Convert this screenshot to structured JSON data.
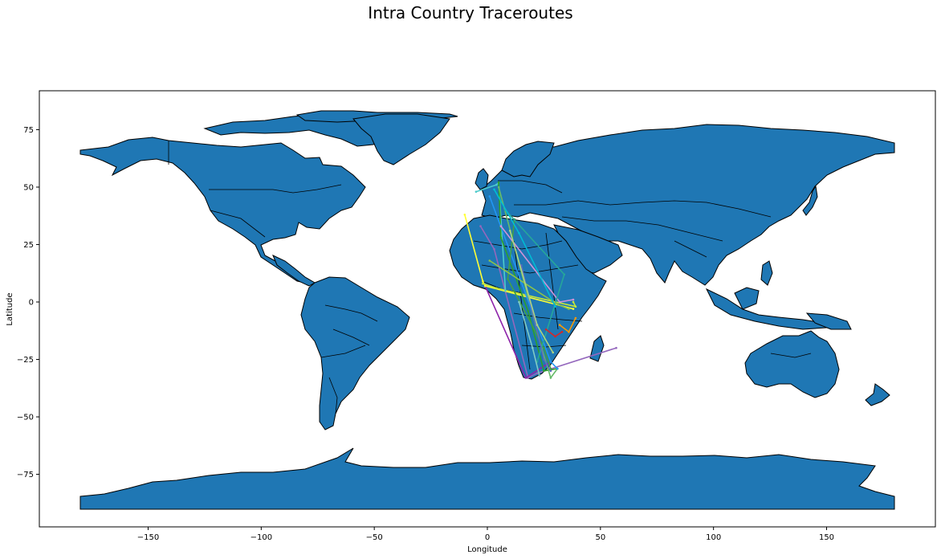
{
  "chart_data": {
    "type": "map",
    "title": "Intra Country Traceroutes",
    "xlabel": "Longitude",
    "ylabel": "Latitude",
    "xlim": [
      -198,
      198
    ],
    "ylim": [
      -99,
      92
    ],
    "xticks": [
      -150,
      -100,
      -50,
      0,
      50,
      100,
      150
    ],
    "yticks": [
      75,
      50,
      25,
      0,
      -25,
      -50,
      -75
    ],
    "xtick_labels": [
      "−150",
      "−100",
      "−50",
      "0",
      "50",
      "100",
      "150"
    ],
    "ytick_labels": [
      "75",
      "50",
      "25",
      "0",
      "−25",
      "−50",
      "−75"
    ],
    "land_color": "#1f77b4",
    "border_color": "#000000",
    "grid": false,
    "routes": [
      {
        "color": "#9467bd",
        "points": [
          [
            -3,
            33
          ],
          [
            3,
            23
          ],
          [
            18,
            -33
          ],
          [
            22,
            -31
          ],
          [
            57,
            -20
          ]
        ]
      },
      {
        "color": "#8e24aa",
        "points": [
          [
            -1,
            7
          ],
          [
            17,
            -33
          ],
          [
            28,
            -26
          ]
        ]
      },
      {
        "color": "#ffff33",
        "points": [
          [
            -10,
            38
          ],
          [
            -2,
            9
          ],
          [
            -1,
            7
          ],
          [
            38,
            -3
          ]
        ]
      },
      {
        "color": "#c6e83a",
        "points": [
          [
            -2,
            8
          ],
          [
            4,
            6
          ],
          [
            39,
            -2
          ],
          [
            38,
            0
          ]
        ]
      },
      {
        "color": "#4ecbcb",
        "points": [
          [
            -5,
            48
          ],
          [
            4,
            51
          ],
          [
            5,
            52
          ],
          [
            8,
            5
          ]
        ]
      },
      {
        "color": "#2ca02c",
        "points": [
          [
            5,
            52
          ],
          [
            6,
            28
          ],
          [
            18,
            -4
          ],
          [
            25,
            -30
          ],
          [
            31,
            -29
          ]
        ]
      },
      {
        "color": "#66bb6a",
        "points": [
          [
            5,
            50
          ],
          [
            24,
            -20
          ],
          [
            28,
            -33
          ],
          [
            31,
            -29
          ]
        ]
      },
      {
        "color": "#2196f3",
        "points": [
          [
            1,
            46
          ],
          [
            28,
            -26
          ],
          [
            31,
            -29
          ]
        ]
      },
      {
        "color": "#43a047",
        "points": [
          [
            12,
            36
          ],
          [
            9,
            10
          ],
          [
            25,
            -20
          ],
          [
            28,
            -29
          ]
        ]
      },
      {
        "color": "#ce93d8",
        "points": [
          [
            6,
            33
          ],
          [
            32,
            0
          ],
          [
            38,
            1
          ]
        ]
      },
      {
        "color": "#26a69a",
        "points": [
          [
            8,
            40
          ],
          [
            34,
            12
          ],
          [
            22,
            -26
          ]
        ]
      },
      {
        "color": "#5c6bc0",
        "points": [
          [
            15,
            16
          ],
          [
            25,
            -25
          ],
          [
            28,
            -30
          ]
        ]
      },
      {
        "color": "#80cbc4",
        "points": [
          [
            14,
            0
          ],
          [
            20,
            -20
          ],
          [
            23,
            -32
          ]
        ]
      },
      {
        "color": "#d62728",
        "points": [
          [
            26,
            -12
          ],
          [
            30,
            -15
          ],
          [
            33,
            -13
          ]
        ]
      },
      {
        "color": "#ff9800",
        "points": [
          [
            32,
            -10
          ],
          [
            36,
            -13
          ],
          [
            39,
            -7
          ]
        ]
      },
      {
        "color": "#8bc34a",
        "points": [
          [
            1,
            18
          ],
          [
            31,
            -1
          ],
          [
            36,
            -3
          ]
        ]
      },
      {
        "color": "#00bcd4",
        "points": [
          [
            3,
            49
          ],
          [
            14,
            30
          ],
          [
            30,
            -2
          ]
        ]
      },
      {
        "color": "#aed581",
        "points": [
          [
            10,
            31
          ],
          [
            22,
            -10
          ],
          [
            29,
            -22
          ]
        ]
      }
    ]
  }
}
